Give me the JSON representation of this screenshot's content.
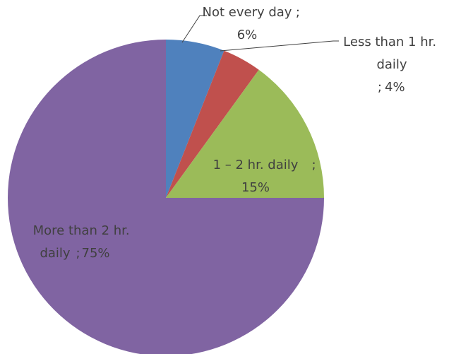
{
  "chart_data": {
    "type": "pie",
    "categories": [
      "Not every day",
      "Less than 1 hr. daily",
      "1 – 2 hr. daily",
      "More than 2 hr. daily"
    ],
    "values": [
      6,
      4,
      15,
      75
    ],
    "value_labels": [
      "6%",
      "4%",
      "15%",
      "75%"
    ],
    "label_separator": ";",
    "colors": [
      "#4f81bd",
      "#c0504d",
      "#9bbb59",
      "#8064a2"
    ]
  }
}
